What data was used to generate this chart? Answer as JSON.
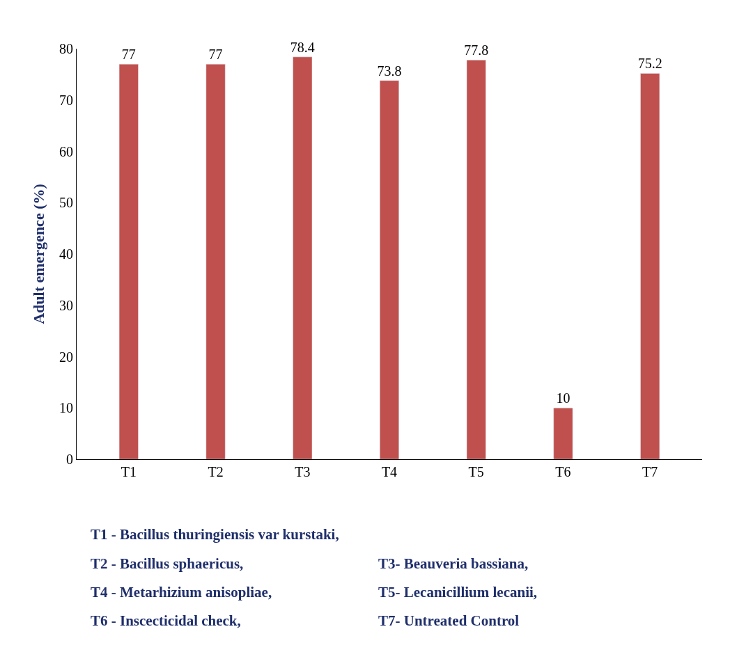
{
  "chart_data": {
    "type": "bar",
    "ylabel": "Adult emergence (%)",
    "categories": [
      "T1",
      "T2",
      "T3",
      "T4",
      "T5",
      "T6",
      "T7"
    ],
    "values": [
      77,
      77,
      78.4,
      73.8,
      77.8,
      10,
      75.2
    ],
    "color": "#c0504d",
    "ylim": [
      0,
      80
    ],
    "yticks": [
      0,
      10,
      20,
      30,
      40,
      50,
      60,
      70,
      80
    ],
    "data_labels": true,
    "annotations": [
      "T1 - Bacillus thuringiensis var kurstaki,",
      "T2 - Bacillus sphaericus,",
      "T3- Beauveria bassiana,",
      "T4 - Metarhizium anisopliae,",
      "T5- Lecanicillium lecanii,",
      "T6 - Inscecticidal check,",
      "T7- Untreated Control"
    ]
  }
}
